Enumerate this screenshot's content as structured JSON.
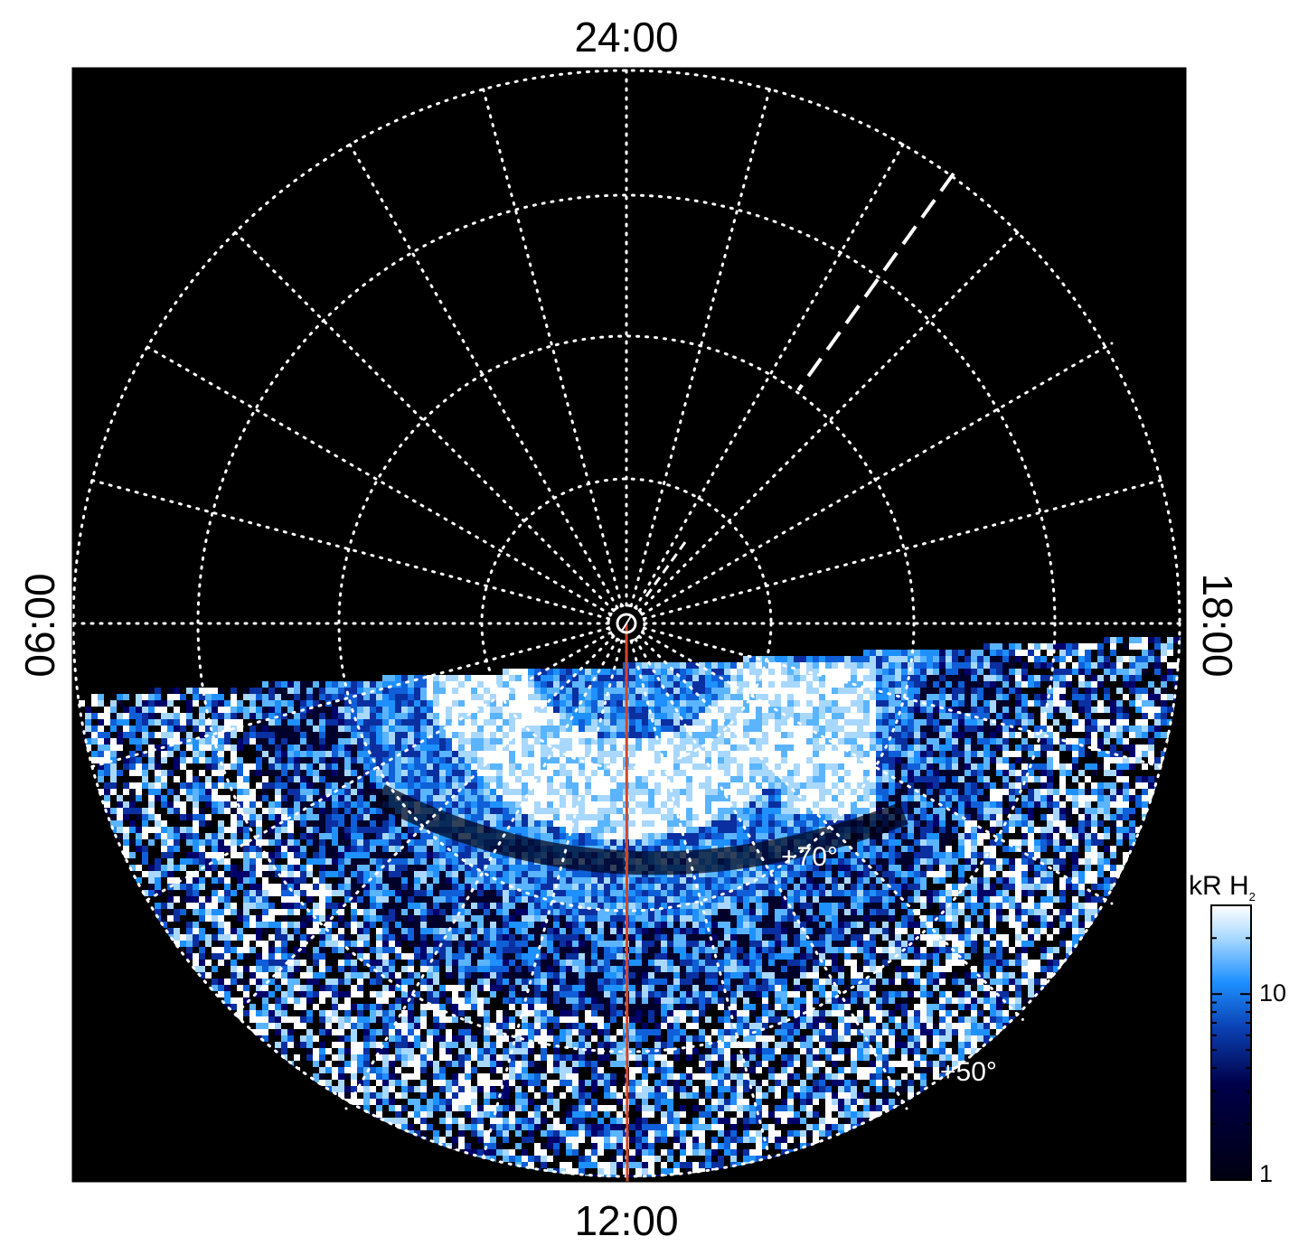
{
  "local_time_labels": {
    "top": "24:00",
    "bottom": "12:00",
    "left": "06:00",
    "right": "18:00"
  },
  "latitude_labels": [
    "+70°",
    "+50°"
  ],
  "colorbar": {
    "title_main": "kR H",
    "title_sub": "2",
    "ticks": [
      "10",
      "1"
    ],
    "scale": "log",
    "range": [
      1,
      30
    ],
    "colors": [
      "#000010",
      "#00004a",
      "#0a3fb0",
      "#1e90ff",
      "#a8d8ff",
      "#ffffff"
    ]
  },
  "colors": {
    "background": "#000000",
    "grid": "#ffffff",
    "meridian_line": "#d2462a"
  }
}
